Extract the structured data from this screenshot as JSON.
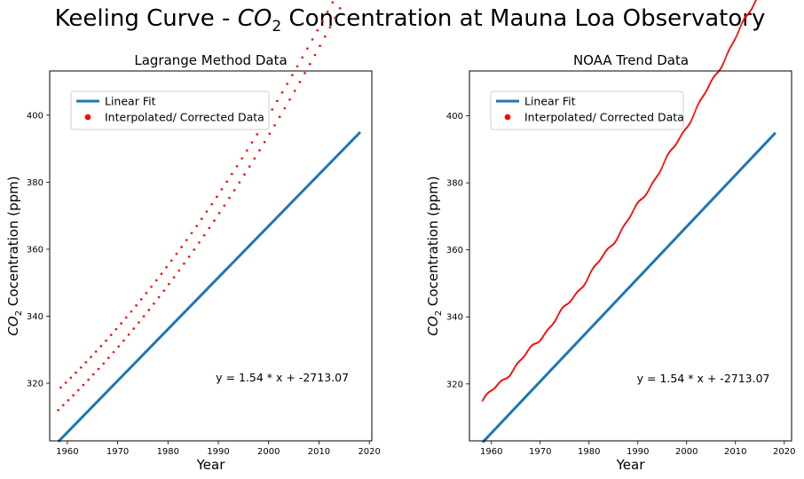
{
  "figure": {
    "suptitle_prefix": "Keeling Curve - ",
    "suptitle_co": "CO",
    "suptitle_sub": "2",
    "suptitle_suffix": " Concentration at Mauna Loa Observatory"
  },
  "colors": {
    "fit_line": "#1f77b4",
    "data_points": "#ff0000",
    "axes": "#000000"
  },
  "chart_data": [
    {
      "type": "scatter",
      "title": "Lagrange Method Data",
      "xlabel": "Year",
      "ylabel_prefix": "CO",
      "ylabel_sub": "2",
      "ylabel_suffix": " Cocentration (ppm)",
      "xlim": [
        1956.5,
        2020.5
      ],
      "ylim": [
        302.8,
        413.2
      ],
      "xticks": [
        1960,
        1970,
        1980,
        1990,
        2000,
        2010,
        2020
      ],
      "yticks": [
        320,
        340,
        360,
        380,
        400
      ],
      "legend": {
        "placement": "upper-left",
        "entries": [
          "Linear Fit",
          "Interpolated/ Corrected Data"
        ]
      },
      "equation": "y = 1.54 * x + -2713.07",
      "equation_position": [
        1989.5,
        320.5
      ],
      "fit": {
        "slope": 1.54,
        "intercept": -2713.07,
        "x_range": [
          1958.2,
          2018.2
        ]
      },
      "data_style": "sparse-markers",
      "data": {
        "x_start": 1958.2,
        "x_end": 2018.2,
        "quadratic": [
          0.0127,
          1.43,
          315.0
        ],
        "seasonal_amplitude": 3.0
      }
    },
    {
      "type": "scatter",
      "title": "NOAA Trend Data",
      "xlabel": "Year",
      "ylabel_prefix": "CO",
      "ylabel_sub": "2",
      "ylabel_suffix": " Cocentration (ppm)",
      "xlim": [
        1955.5,
        2021.5
      ],
      "ylim": [
        303.0,
        413.4
      ],
      "xticks": [
        1960,
        1970,
        1980,
        1990,
        2000,
        2010,
        2020
      ],
      "yticks": [
        320,
        340,
        360,
        380,
        400
      ],
      "legend": {
        "placement": "upper-left",
        "entries": [
          "Linear Fit",
          "Interpolated/ Corrected Data"
        ]
      },
      "equation": "y = 1.54 * x + -2713.07",
      "equation_position": [
        1989.8,
        320.5
      ],
      "fit": {
        "slope": 1.54,
        "intercept": -2713.07,
        "x_range": [
          1958.2,
          2018.2
        ]
      },
      "data_style": "dense-trend",
      "data": {
        "x_start": 1958.2,
        "x_end": 2018.2,
        "quadratic": [
          0.0127,
          1.43,
          315.0
        ],
        "seasonal_amplitude": 0.0
      }
    }
  ]
}
